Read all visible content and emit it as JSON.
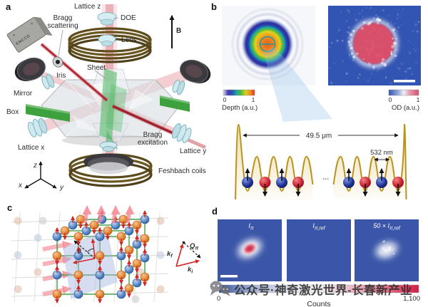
{
  "figure": {
    "panel_a_label": "a",
    "panel_b_label": "b",
    "panel_c_label": "c",
    "panel_d_label": "d"
  },
  "panel_a": {
    "emccd": "EMCCD",
    "lattice_z": "Lattice z",
    "doe": "DOE",
    "lens": "Lens",
    "bragg_scattering_line1": "Bragg",
    "bragg_scattering_line2": "scattering",
    "magnetic_field": "B",
    "iris": "Iris",
    "sheet": "Sheet",
    "mirror": "Mirror",
    "box": "Box",
    "lattice_x": "Lattice x",
    "bragg_excitation_line1": "Bragg",
    "bragg_excitation_line2": "excitation",
    "lattice_y": "Lattice y",
    "feshbach_coils": "Feshbach coils",
    "axis_x": "x",
    "axis_y": "y",
    "axis_z": "z"
  },
  "panel_b": {
    "depth_colorbar": {
      "min": "0",
      "max": "1",
      "title": "Depth (a.u.)"
    },
    "od_colorbar": {
      "min": "0",
      "max": "1",
      "title": "OD (a.u.)"
    },
    "box_width": "49.5 μm",
    "lattice_spacing": "532 nm",
    "ellipsis": "..."
  },
  "panel_c": {
    "theta": "θ",
    "k_out": {
      "base": "k",
      "sub": "f"
    },
    "k_in": {
      "base": "k",
      "sub": "i"
    },
    "q_vector": {
      "base": "Q",
      "sub": "π"
    }
  },
  "panel_d": {
    "image1": {
      "base": "I",
      "sub": "π"
    },
    "image2": {
      "base": "I",
      "sub": "π,ref"
    },
    "image3": {
      "prefix": "50 × ",
      "base": "I",
      "sub": "π,ref"
    },
    "counts_colorbar": {
      "min": "0",
      "max": "1,100",
      "title": "Counts"
    }
  },
  "watermark": {
    "text": "公众号·神奇激光世界-长春新产业"
  }
}
